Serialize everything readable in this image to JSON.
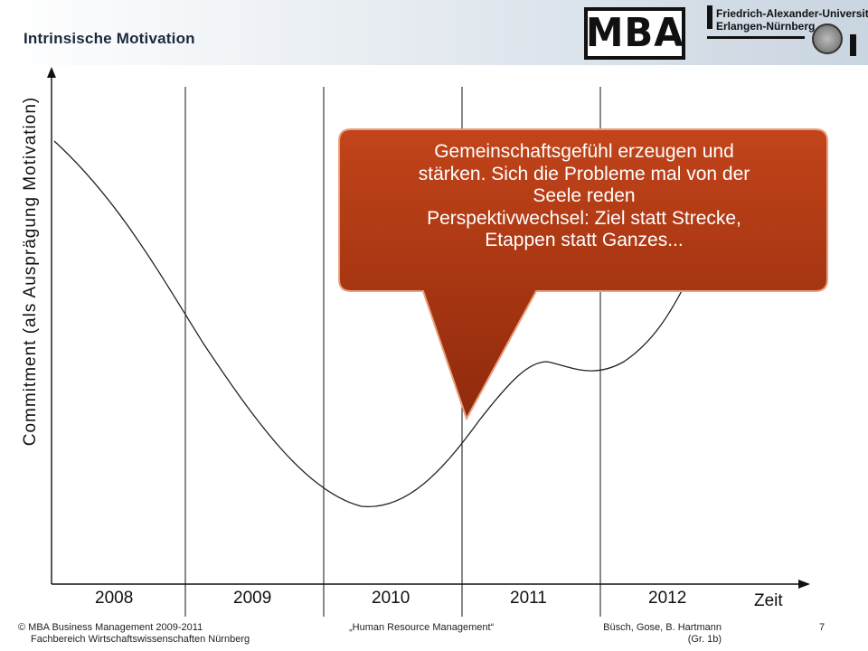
{
  "header": {
    "title": "Intrinsische Motivation",
    "logo_mba": "MBA",
    "logo_fau_line1": "Friedrich-Alexander-Universität",
    "logo_fau_line2": "Erlangen-Nürnberg"
  },
  "chart": {
    "ylabel": "Commitment (als Ausprägung Motivation)",
    "xlabel": "Zeit",
    "years": [
      "2008",
      "2009",
      "2010",
      "2011",
      "2012"
    ]
  },
  "callout": {
    "lines": [
      "Gemeinschaftsgefühl erzeugen und",
      "stärken. Sich die Probleme mal von der",
      "Seele reden",
      "Perspektivwechsel: Ziel statt Strecke,",
      "Etappen statt Ganzes..."
    ],
    "fill_color": "#a33310"
  },
  "footer": {
    "left_line1": "© MBA Business Management 2009-2011",
    "left_line2": "Fachbereich Wirtschaftswissenschaften Nürnberg",
    "center": "„Human Resource Management“",
    "right_line1": "Büsch, Gose, B. Hartmann",
    "right_line2": "(Gr. 1b)",
    "page_number": "7"
  }
}
